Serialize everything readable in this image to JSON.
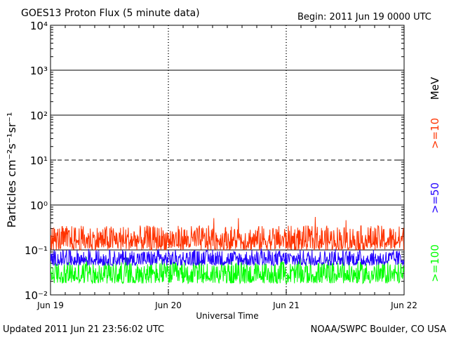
{
  "chart_data": {
    "type": "line",
    "title": "GOES13 Proton Flux (5 minute data)",
    "begin_label": "Begin: 2011 Jun 19 0000 UTC",
    "xlabel": "Universal Time",
    "ylabel": "Particles cm⁻²s⁻¹sr⁻¹",
    "yscale": "log",
    "ylim": [
      0.01,
      10000
    ],
    "y_ticks": [
      {
        "value": 0.01,
        "label": "10⁻²"
      },
      {
        "value": 0.1,
        "label": "10⁻¹"
      },
      {
        "value": 1,
        "label": "10⁰"
      },
      {
        "value": 10,
        "label": "10¹"
      },
      {
        "value": 100,
        "label": "10²"
      },
      {
        "value": 1000,
        "label": "10³"
      },
      {
        "value": 10000,
        "label": "10⁴"
      }
    ],
    "x_ticks": [
      "Jun 19",
      "Jun 20",
      "Jun 21",
      "Jun 22"
    ],
    "xlim_days": [
      0,
      3
    ],
    "unit_label": "MeV",
    "reference_lines": [
      {
        "value": 1000,
        "style": "solid"
      },
      {
        "value": 100,
        "style": "solid"
      },
      {
        "value": 10,
        "style": "dashed"
      },
      {
        "value": 1,
        "style": "solid"
      },
      {
        "value": 0.1,
        "style": "solid"
      }
    ],
    "series": [
      {
        "name": ">=10",
        "color": "#ff3300",
        "typical_range": [
          0.1,
          0.35
        ],
        "peak": 0.55
      },
      {
        "name": ">=50",
        "color": "#2200ff",
        "typical_range": [
          0.045,
          0.1
        ],
        "peak": 0.11
      },
      {
        "name": ">=100",
        "color": "#00ff00",
        "typical_range": [
          0.018,
          0.055
        ],
        "peak": 0.07
      }
    ]
  },
  "footer": {
    "updated": "Updated 2011 Jun 21 23:56:02 UTC",
    "credit": "NOAA/SWPC Boulder, CO USA"
  }
}
